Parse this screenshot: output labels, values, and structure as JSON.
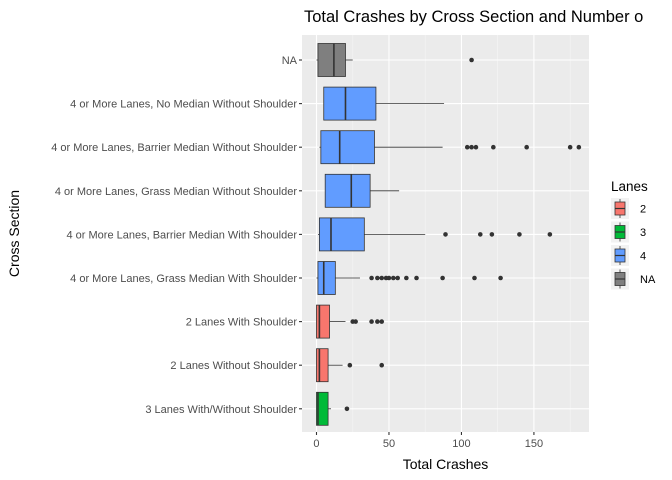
{
  "chart_data": {
    "type": "boxplot",
    "title": "Total Crashes by Cross Section and Number o",
    "xlabel": "Total Crashes",
    "ylabel": "Cross Section",
    "xlim": [
      -10,
      188
    ],
    "xticks": [
      0,
      50,
      100,
      150
    ],
    "grid": true,
    "legend": {
      "title": "Lanes",
      "placement": "right",
      "entries": [
        {
          "label": "2",
          "color": "#F8766D"
        },
        {
          "label": "3",
          "color": "#00BA38"
        },
        {
          "label": "4",
          "color": "#619CFF"
        },
        {
          "label": "NA",
          "color": "#7F7F7F"
        }
      ]
    },
    "categories": [
      "NA",
      "4 or More Lanes, No Median Without Shoulder",
      "4 or More Lanes, Barrier Median Without Shoulder",
      "4 or More Lanes, Grass Median Without Shoulder",
      "4 or More Lanes, Barrier Median With Shoulder",
      "4 or More Lanes, Grass Median With Shoulder",
      "2 Lanes With Shoulder",
      "2 Lanes Without Shoulder",
      "3 Lanes With/Without Shoulder"
    ],
    "boxes": [
      {
        "category": "NA",
        "lanes": "NA",
        "whisker_low": 0,
        "q1": 1,
        "median": 12,
        "q3": 20,
        "whisker_high": 25,
        "outliers": [
          107
        ]
      },
      {
        "category": "4 or More Lanes, No Median Without Shoulder",
        "lanes": "4",
        "whisker_low": 5,
        "q1": 5,
        "median": 20,
        "q3": 41,
        "whisker_high": 88,
        "outliers": []
      },
      {
        "category": "4 or More Lanes, Barrier Median Without Shoulder",
        "lanes": "4",
        "whisker_low": 2,
        "q1": 3,
        "median": 16,
        "q3": 40,
        "whisker_high": 87,
        "outliers": [
          104,
          107,
          110,
          122,
          145,
          175,
          181
        ]
      },
      {
        "category": "4 or More Lanes, Grass Median Without Shoulder",
        "lanes": "4",
        "whisker_low": 6,
        "q1": 6,
        "median": 24,
        "q3": 37,
        "whisker_high": 57,
        "outliers": []
      },
      {
        "category": "4 or More Lanes, Barrier Median With Shoulder",
        "lanes": "4",
        "whisker_low": 1,
        "q1": 2,
        "median": 10,
        "q3": 33,
        "whisker_high": 75,
        "outliers": [
          89,
          113,
          121,
          140,
          161
        ]
      },
      {
        "category": "4 or More Lanes, Grass Median With Shoulder",
        "lanes": "4",
        "whisker_low": 0,
        "q1": 1,
        "median": 5,
        "q3": 13,
        "whisker_high": 30,
        "outliers": [
          38,
          42,
          45,
          48,
          50,
          53,
          56,
          62,
          69,
          87,
          109,
          127
        ]
      },
      {
        "category": "2 Lanes With Shoulder",
        "lanes": "2",
        "whisker_low": 0,
        "q1": 0,
        "median": 2,
        "q3": 9,
        "whisker_high": 20,
        "outliers": [
          25,
          27,
          38,
          42,
          45
        ]
      },
      {
        "category": "2 Lanes Without Shoulder",
        "lanes": "2",
        "whisker_low": 0,
        "q1": 0,
        "median": 2,
        "q3": 8,
        "whisker_high": 18,
        "outliers": [
          23,
          45
        ]
      },
      {
        "category": "3 Lanes With/Without Shoulder",
        "lanes": "3",
        "whisker_low": 0,
        "q1": 0,
        "median": 1,
        "q3": 8,
        "whisker_high": 10,
        "outliers": [
          21
        ]
      }
    ]
  }
}
